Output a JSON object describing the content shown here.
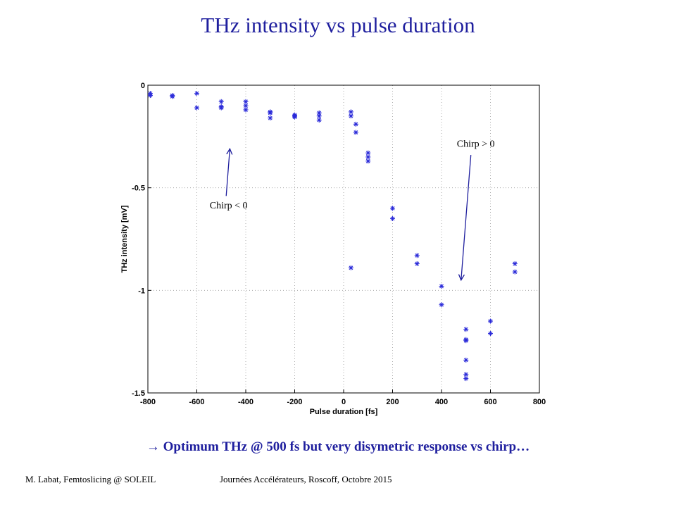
{
  "slide": {
    "title": "THz intensity vs pulse duration",
    "conclusion_arrow": "→",
    "conclusion": "Optimum THz @ 500 fs but very disymetric response vs chirp…",
    "footer_left": "M. Labat, Femtoslicing @ SOLEIL",
    "footer_right": "Journées Accélérateurs, Roscoff, Octobre 2015"
  },
  "colors": {
    "title": "#1f1f9e",
    "marker": "#2b2bd9",
    "grid": "#999999"
  },
  "chart_data": {
    "type": "scatter",
    "title": "",
    "xlabel": "Pulse duration [fs]",
    "ylabel": "THz intensity [mV]",
    "xlim": [
      -800,
      800
    ],
    "ylim": [
      -1.5,
      0
    ],
    "xticks": [
      -800,
      -600,
      -400,
      -200,
      0,
      200,
      400,
      600,
      800
    ],
    "yticks": [
      0,
      -0.5,
      -1,
      -1.5
    ],
    "xtick_labels": [
      "-800",
      "-600",
      "-400",
      "-200",
      "0",
      "200",
      "400",
      "600",
      "800"
    ],
    "ytick_labels": [
      "0",
      "-0.5",
      "-1",
      "-1.5"
    ],
    "grid": true,
    "marker": "asterisk",
    "points": [
      {
        "x": -790,
        "y": -0.04
      },
      {
        "x": -790,
        "y": -0.05
      },
      {
        "x": -700,
        "y": -0.05
      },
      {
        "x": -700,
        "y": -0.055
      },
      {
        "x": -600,
        "y": -0.04
      },
      {
        "x": -600,
        "y": -0.11
      },
      {
        "x": -500,
        "y": -0.08
      },
      {
        "x": -500,
        "y": -0.105
      },
      {
        "x": -500,
        "y": -0.11
      },
      {
        "x": -400,
        "y": -0.08
      },
      {
        "x": -400,
        "y": -0.1
      },
      {
        "x": -400,
        "y": -0.12
      },
      {
        "x": -300,
        "y": -0.13
      },
      {
        "x": -300,
        "y": -0.135
      },
      {
        "x": -300,
        "y": -0.16
      },
      {
        "x": -200,
        "y": -0.145
      },
      {
        "x": -200,
        "y": -0.15
      },
      {
        "x": -200,
        "y": -0.155
      },
      {
        "x": -100,
        "y": -0.135
      },
      {
        "x": -100,
        "y": -0.15
      },
      {
        "x": -100,
        "y": -0.17
      },
      {
        "x": 30,
        "y": -0.13
      },
      {
        "x": 30,
        "y": -0.15
      },
      {
        "x": 30,
        "y": -0.89
      },
      {
        "x": 50,
        "y": -0.19
      },
      {
        "x": 50,
        "y": -0.23
      },
      {
        "x": 100,
        "y": -0.33
      },
      {
        "x": 100,
        "y": -0.35
      },
      {
        "x": 100,
        "y": -0.37
      },
      {
        "x": 200,
        "y": -0.6
      },
      {
        "x": 200,
        "y": -0.65
      },
      {
        "x": 300,
        "y": -0.83
      },
      {
        "x": 300,
        "y": -0.87
      },
      {
        "x": 400,
        "y": -0.98
      },
      {
        "x": 400,
        "y": -1.07
      },
      {
        "x": 500,
        "y": -1.19
      },
      {
        "x": 500,
        "y": -1.24
      },
      {
        "x": 500,
        "y": -1.245
      },
      {
        "x": 500,
        "y": -1.34
      },
      {
        "x": 500,
        "y": -1.41
      },
      {
        "x": 500,
        "y": -1.43
      },
      {
        "x": 600,
        "y": -1.15
      },
      {
        "x": 600,
        "y": -1.21
      },
      {
        "x": 700,
        "y": -0.87
      },
      {
        "x": 700,
        "y": -0.91
      }
    ],
    "annotations": [
      {
        "text": "Chirp < 0",
        "text_x": -470,
        "text_y": -0.6,
        "arrow_from": [
          -480,
          -0.54
        ],
        "arrow_to": [
          -465,
          -0.31
        ]
      },
      {
        "text": "Chirp > 0",
        "text_x": 540,
        "text_y": -0.3,
        "arrow_from": [
          520,
          -0.34
        ],
        "arrow_to": [
          480,
          -0.95
        ]
      }
    ]
  }
}
